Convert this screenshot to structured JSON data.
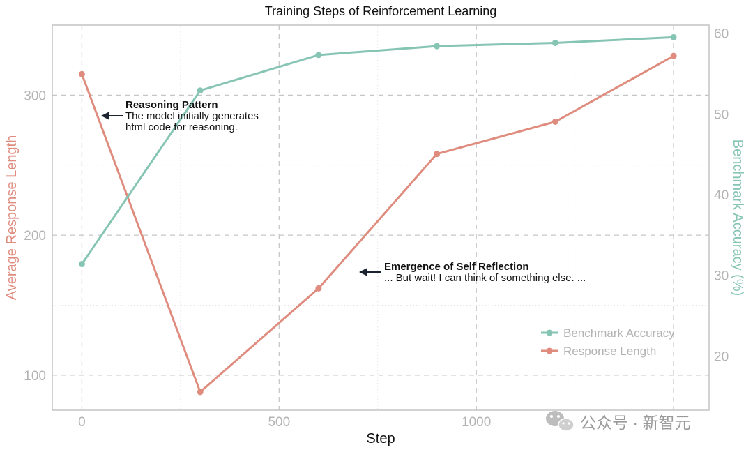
{
  "chart_data": {
    "type": "line",
    "title": "Training Steps of Reinforcement Learning",
    "xlabel": "Step",
    "ylabel_left": "Average Response Length",
    "ylabel_right": "Benchmark Accuracy (%)",
    "xlim": [
      -75,
      1590
    ],
    "ylim_left": [
      75,
      350
    ],
    "ylim_right": [
      13.3,
      61
    ],
    "xticks": [
      0,
      500,
      1000
    ],
    "yticks_left": [
      100,
      200,
      300
    ],
    "yticks_right": [
      20,
      30,
      40,
      50,
      60
    ],
    "grid": true,
    "legend_position": "lower-right",
    "series": [
      {
        "name": "Benchmark Accuracy",
        "axis": "right",
        "color": "#86c4b3",
        "x": [
          0,
          300,
          600,
          900,
          1200,
          1500
        ],
        "values": [
          31.4,
          52.9,
          57.3,
          58.4,
          58.8,
          59.5
        ]
      },
      {
        "name": "Response Length",
        "axis": "left",
        "color": "#df8c7e",
        "x": [
          0,
          300,
          600,
          900,
          1200,
          1500
        ],
        "values": [
          315,
          88,
          162,
          258,
          281,
          328
        ]
      }
    ],
    "annotations": [
      {
        "title": "Reasoning Pattern",
        "lines": [
          "The model initially generates",
          "html code for reasoning."
        ]
      },
      {
        "title": "Emergence of Self Reflection",
        "lines": [
          "... But wait! I can think of something else. ..."
        ]
      }
    ]
  },
  "watermark": {
    "text": "公众号 · 新智元",
    "icon": "wechat-icon"
  }
}
